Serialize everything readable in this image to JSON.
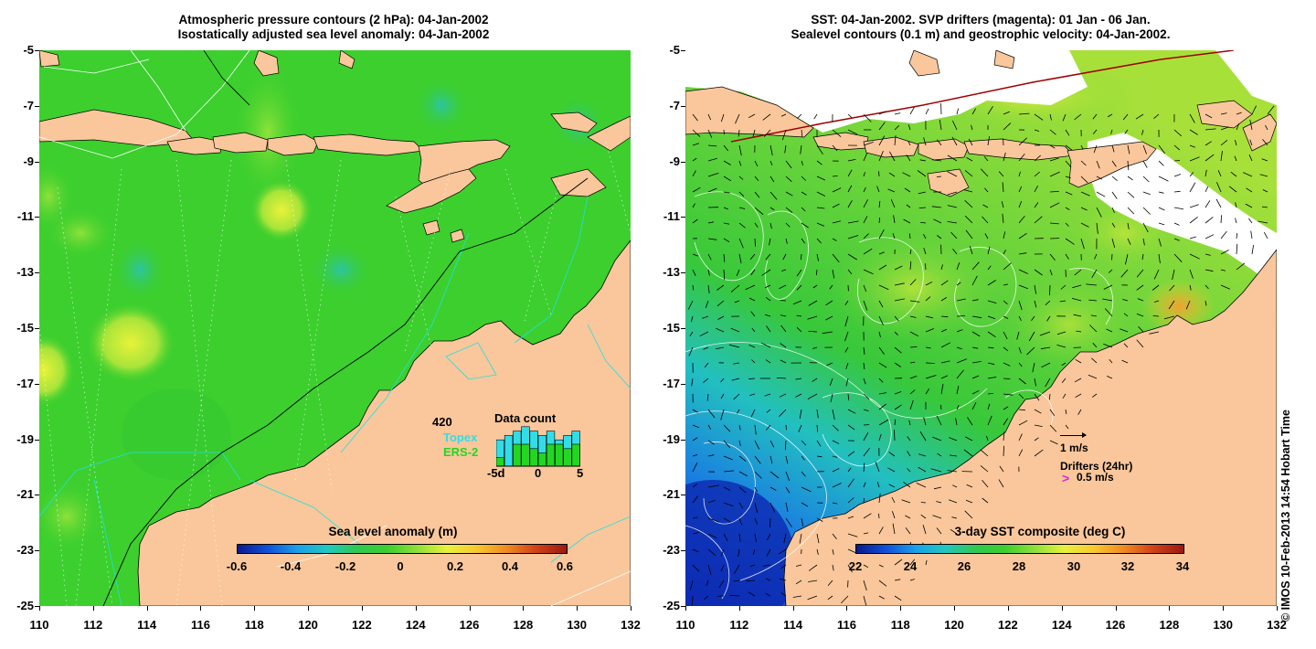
{
  "left_panel": {
    "title_line1": "Atmospheric pressure contours (2 hPa): 04-Jan-2002",
    "title_line2": "Isostatically adjusted sea level anomaly: 04-Jan-2002",
    "colorbar": {
      "title": "Sea level anomaly (m)",
      "labels": [
        "-0.6",
        "-0.4",
        "-0.2",
        "0",
        "0.2",
        "0.4",
        "0.6"
      ]
    },
    "data_count": {
      "number": "420",
      "title": "Data count",
      "topex_label": "Topex",
      "ers2_label": "ERS-2",
      "axis_labels": [
        "-5d",
        "0",
        "5"
      ],
      "topex_color": "#33dde8",
      "ers2_color": "#22d622",
      "topex_counts": [
        6,
        7,
        8,
        9,
        8,
        7,
        8,
        6,
        7,
        8
      ],
      "ers2_counts": [
        2,
        0,
        5,
        5,
        4,
        3,
        5,
        5,
        4,
        5
      ]
    }
  },
  "right_panel": {
    "title_line1": "SST: 04-Jan-2002. SVP drifters (magenta): 01 Jan - 06 Jan.",
    "title_line2": "Sealevel contours (0.1 m) and geostrophic velocity: 04-Jan-2002.",
    "colorbar": {
      "title": "3-day SST composite (deg C)",
      "labels": [
        "22",
        "24",
        "26",
        "28",
        "30",
        "32",
        "34"
      ]
    },
    "velocity_scale_label": "1 m/s",
    "drifters_label": "Drifters (24hr)",
    "drifter_speed_label": "0.5 m/s",
    "drifter_symbol": ">"
  },
  "axes": {
    "y_ticks": [
      "-5",
      "-7",
      "-9",
      "-11",
      "-13",
      "-15",
      "-17",
      "-19",
      "-21",
      "-23",
      "-25"
    ],
    "x_ticks": [
      "110",
      "112",
      "114",
      "116",
      "118",
      "120",
      "122",
      "124",
      "126",
      "128",
      "130",
      "132"
    ],
    "lon_range": [
      110,
      132
    ],
    "lat_range": [
      -25,
      -5
    ]
  },
  "colors": {
    "land": "#f9c79b",
    "sla_background": "#3ccf2e",
    "sst_background": "#48c93a"
  },
  "credit": "© IMOS 10-Feb-2013 14:54 Hobart Time"
}
